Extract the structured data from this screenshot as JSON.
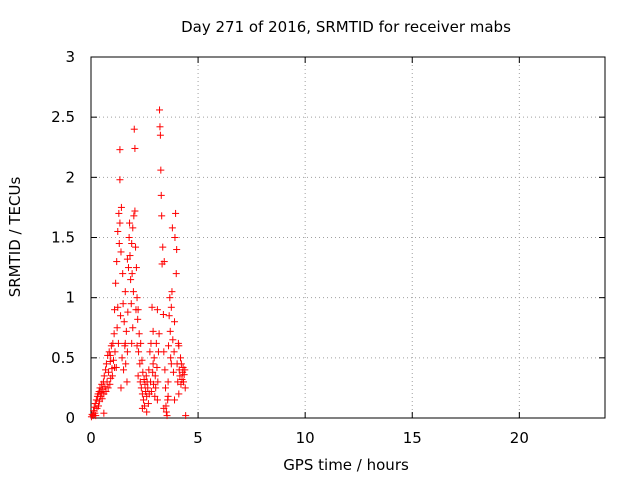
{
  "chart_data": {
    "type": "scatter",
    "title": "Day 271 of 2016, SRMTID for receiver mabs",
    "xlabel": "GPS time / hours",
    "ylabel": "SRMTID / TECUs",
    "xlim": [
      0,
      24
    ],
    "ylim": [
      0,
      3
    ],
    "xticks": [
      0,
      5,
      10,
      15,
      20
    ],
    "yticks": [
      0,
      0.5,
      1,
      1.5,
      2,
      2.5,
      3
    ],
    "xtick_labels": [
      "0",
      "5",
      "10",
      "15",
      "20"
    ],
    "ytick_labels": [
      "0",
      "0.5",
      "1",
      "1.5",
      "2",
      "2.5",
      "3"
    ],
    "grid": true,
    "marker": "+",
    "series": [
      {
        "name": "SRMTID",
        "color": "#ff0000",
        "points": [
          [
            0.02,
            0.01
          ],
          [
            0.05,
            0.03
          ],
          [
            0.1,
            0.02
          ],
          [
            0.12,
            0.06
          ],
          [
            0.15,
            0.09
          ],
          [
            0.18,
            0.04
          ],
          [
            0.2,
            0.12
          ],
          [
            0.22,
            0.02
          ],
          [
            0.25,
            0.15
          ],
          [
            0.28,
            0.08
          ],
          [
            0.3,
            0.18
          ],
          [
            0.33,
            0.2
          ],
          [
            0.35,
            0.1
          ],
          [
            0.38,
            0.22
          ],
          [
            0.4,
            0.14
          ],
          [
            0.42,
            0.25
          ],
          [
            0.45,
            0.18
          ],
          [
            0.48,
            0.21
          ],
          [
            0.5,
            0.28
          ],
          [
            0.52,
            0.16
          ],
          [
            0.55,
            0.24
          ],
          [
            0.58,
            0.3
          ],
          [
            0.6,
            0.2
          ],
          [
            0.62,
            0.35
          ],
          [
            0.65,
            0.26
          ],
          [
            0.68,
            0.4
          ],
          [
            0.7,
            0.22
          ],
          [
            0.72,
            0.45
          ],
          [
            0.75,
            0.3
          ],
          [
            0.78,
            0.52
          ],
          [
            0.8,
            0.25
          ],
          [
            0.82,
            0.38
          ],
          [
            0.85,
            0.55
          ],
          [
            0.88,
            0.28
          ],
          [
            0.9,
            0.47
          ],
          [
            0.92,
            0.33
          ],
          [
            0.95,
            0.6
          ],
          [
            0.98,
            0.41
          ],
          [
            1.0,
            0.35
          ],
          [
            1.02,
            0.62
          ],
          [
            1.05,
            0.48
          ],
          [
            1.08,
            0.7
          ],
          [
            1.1,
            0.9
          ],
          [
            1.12,
            0.55
          ],
          [
            1.15,
            1.12
          ],
          [
            1.18,
            0.42
          ],
          [
            1.2,
            1.3
          ],
          [
            1.22,
            0.75
          ],
          [
            1.25,
            1.55
          ],
          [
            1.28,
            0.62
          ],
          [
            1.3,
            1.7
          ],
          [
            1.32,
            1.45
          ],
          [
            1.35,
            1.62
          ],
          [
            1.38,
            0.85
          ],
          [
            1.4,
            1.38
          ],
          [
            1.42,
            1.75
          ],
          [
            1.45,
            0.5
          ],
          [
            1.48,
            1.2
          ],
          [
            1.5,
            0.95
          ],
          [
            1.52,
            0.4
          ],
          [
            1.55,
            0.8
          ],
          [
            1.58,
            0.6
          ],
          [
            1.6,
            1.05
          ],
          [
            1.62,
            0.45
          ],
          [
            1.65,
            0.72
          ],
          [
            1.68,
            0.3
          ],
          [
            1.7,
            0.55
          ],
          [
            1.72,
            0.88
          ],
          [
            1.75,
            1.25
          ],
          [
            1.78,
            1.5
          ],
          [
            1.8,
            1.62
          ],
          [
            1.82,
            1.35
          ],
          [
            1.85,
            1.15
          ],
          [
            1.88,
            0.95
          ],
          [
            1.9,
            1.45
          ],
          [
            1.92,
            1.2
          ],
          [
            1.95,
            0.75
          ],
          [
            1.98,
            1.05
          ],
          [
            2.0,
            1.68
          ],
          [
            2.02,
            2.4
          ],
          [
            2.05,
            2.24
          ],
          [
            2.08,
            1.42
          ],
          [
            2.1,
            0.9
          ],
          [
            2.12,
            1.25
          ],
          [
            2.15,
            0.6
          ],
          [
            2.18,
            0.82
          ],
          [
            2.2,
            0.35
          ],
          [
            2.22,
            0.55
          ],
          [
            2.25,
            0.7
          ],
          [
            2.28,
            0.45
          ],
          [
            2.3,
            0.3
          ],
          [
            2.32,
            0.62
          ],
          [
            2.35,
            0.25
          ],
          [
            2.38,
            0.48
          ],
          [
            2.4,
            0.2
          ],
          [
            2.42,
            0.38
          ],
          [
            2.45,
            0.15
          ],
          [
            2.48,
            0.32
          ],
          [
            2.5,
            0.1
          ],
          [
            2.52,
            0.28
          ],
          [
            2.55,
            0.22
          ],
          [
            2.58,
            0.35
          ],
          [
            2.6,
            0.18
          ],
          [
            2.62,
            0.3
          ],
          [
            2.65,
            0.25
          ],
          [
            2.68,
            0.12
          ],
          [
            2.7,
            0.4
          ],
          [
            2.72,
            0.2
          ],
          [
            2.75,
            0.55
          ],
          [
            2.78,
            0.3
          ],
          [
            2.8,
            0.62
          ],
          [
            2.82,
            0.22
          ],
          [
            2.85,
            0.92
          ],
          [
            2.88,
            0.38
          ],
          [
            2.9,
            0.72
          ],
          [
            2.92,
            0.28
          ],
          [
            2.95,
            0.5
          ],
          [
            2.98,
            0.18
          ],
          [
            3.0,
            0.35
          ],
          [
            3.02,
            0.25
          ],
          [
            3.05,
            0.62
          ],
          [
            3.08,
            0.42
          ],
          [
            3.1,
            0.9
          ],
          [
            3.12,
            0.3
          ],
          [
            3.15,
            0.55
          ],
          [
            3.18,
            0.7
          ],
          [
            3.2,
            2.56
          ],
          [
            3.22,
            2.42
          ],
          [
            3.24,
            2.35
          ],
          [
            3.26,
            2.06
          ],
          [
            3.28,
            1.85
          ],
          [
            3.3,
            1.68
          ],
          [
            3.32,
            1.28
          ],
          [
            3.35,
            1.42
          ],
          [
            3.38,
            0.86
          ],
          [
            3.4,
            0.55
          ],
          [
            3.42,
            1.3
          ],
          [
            3.45,
            0.4
          ],
          [
            3.48,
            0.25
          ],
          [
            3.5,
            0.1
          ],
          [
            3.52,
            0.05
          ],
          [
            3.55,
            0.02
          ],
          [
            3.58,
            0.15
          ],
          [
            3.6,
            0.3
          ],
          [
            3.62,
            0.6
          ],
          [
            3.65,
            0.85
          ],
          [
            3.68,
            1.0
          ],
          [
            3.7,
            0.72
          ],
          [
            3.72,
            0.5
          ],
          [
            3.75,
            0.92
          ],
          [
            3.78,
            1.05
          ],
          [
            3.8,
            1.58
          ],
          [
            3.82,
            0.65
          ],
          [
            3.85,
            0.38
          ],
          [
            3.88,
            0.55
          ],
          [
            3.9,
            0.8
          ],
          [
            3.92,
            1.5
          ],
          [
            3.95,
            1.7
          ],
          [
            3.98,
            1.2
          ],
          [
            4.0,
            1.4
          ],
          [
            4.02,
            0.45
          ],
          [
            4.05,
            0.3
          ],
          [
            4.08,
            0.62
          ],
          [
            4.1,
            0.2
          ],
          [
            4.12,
            0.4
          ],
          [
            4.15,
            0.35
          ],
          [
            4.18,
            0.5
          ],
          [
            4.2,
            0.28
          ],
          [
            4.22,
            0.45
          ],
          [
            4.25,
            0.32
          ],
          [
            4.28,
            0.38
          ],
          [
            4.3,
            0.42
          ],
          [
            4.32,
            0.3
          ],
          [
            4.35,
            0.36
          ],
          [
            4.38,
            0.4
          ],
          [
            4.4,
            0.25
          ],
          [
            4.42,
            0.02
          ],
          [
            0.6,
            0.04
          ],
          [
            1.6,
            0.62
          ],
          [
            1.4,
            0.25
          ],
          [
            2.6,
            0.05
          ],
          [
            2.4,
            0.08
          ],
          [
            3.6,
            0.18
          ],
          [
            3.4,
            0.08
          ],
          [
            1.7,
            1.32
          ],
          [
            1.9,
            0.62
          ],
          [
            2.2,
            0.9
          ],
          [
            0.9,
            0.52
          ],
          [
            1.1,
            0.42
          ],
          [
            2.9,
            0.45
          ],
          [
            3.9,
            0.15
          ],
          [
            4.1,
            0.6
          ],
          [
            3.1,
            0.15
          ],
          [
            1.35,
            1.98
          ],
          [
            1.35,
            2.23
          ],
          [
            2.05,
            1.72
          ],
          [
            1.95,
            1.58
          ],
          [
            2.15,
            1.0
          ],
          [
            1.25,
            0.92
          ],
          [
            3.75,
            0.45
          ]
        ]
      }
    ]
  }
}
